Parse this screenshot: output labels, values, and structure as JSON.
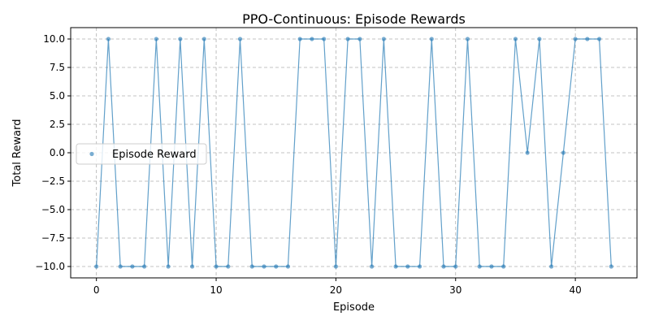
{
  "chart_data": {
    "type": "line",
    "title": "PPO-Continuous: Episode Rewards",
    "xlabel": "Episode",
    "ylabel": "Total Reward",
    "xlim": [
      -2.15,
      45.15
    ],
    "ylim": [
      -11,
      11
    ],
    "xticks": [
      0,
      10,
      20,
      30,
      40
    ],
    "yticks": [
      -10.0,
      -7.5,
      -5.0,
      -2.5,
      0.0,
      2.5,
      5.0,
      7.5,
      10.0
    ],
    "xtick_labels": [
      "0",
      "10",
      "20",
      "30",
      "40"
    ],
    "ytick_labels": [
      "−10.0",
      "−7.5",
      "−5.0",
      "−2.5",
      "0.0",
      "2.5",
      "5.0",
      "7.5",
      "10.0"
    ],
    "grid": true,
    "legend_position": "center-left",
    "series": [
      {
        "name": "Episode Reward",
        "color": "#1f77b4",
        "x": [
          0,
          1,
          2,
          3,
          4,
          5,
          6,
          7,
          8,
          9,
          10,
          11,
          12,
          13,
          14,
          15,
          16,
          17,
          18,
          19,
          20,
          21,
          22,
          23,
          24,
          25,
          26,
          27,
          28,
          29,
          30,
          31,
          32,
          33,
          34,
          35,
          36,
          37,
          38,
          39,
          40,
          41,
          42,
          43
        ],
        "values": [
          -10,
          10,
          -10,
          -10,
          -10,
          10,
          -10,
          10,
          -10,
          10,
          -10,
          -10,
          10,
          -10,
          -10,
          -10,
          -10,
          10,
          10,
          10,
          -10,
          10,
          10,
          -10,
          10,
          -10,
          -10,
          -10,
          10,
          -10,
          -10,
          10,
          -10,
          -10,
          -10,
          10,
          0,
          10,
          -10,
          0,
          10,
          10,
          10,
          -10
        ]
      }
    ]
  }
}
